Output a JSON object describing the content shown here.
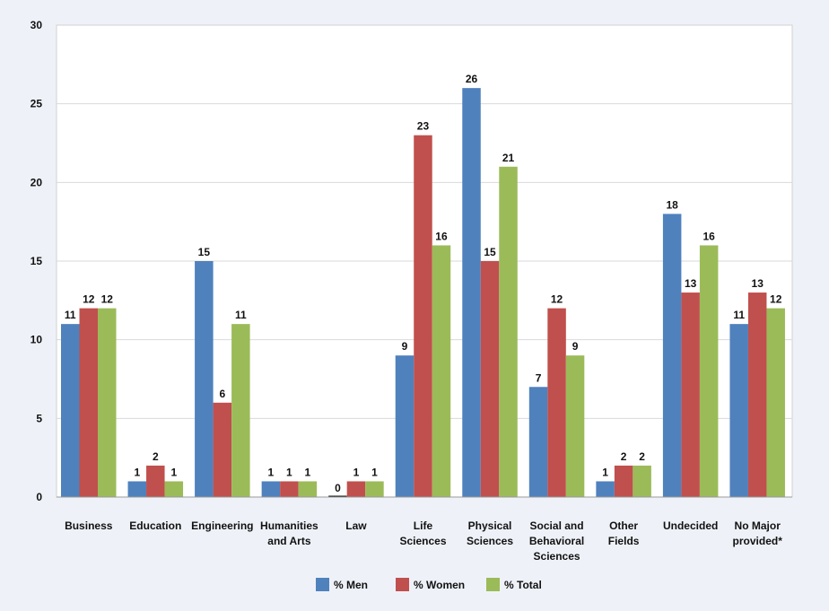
{
  "chart_data": {
    "type": "bar",
    "title": "",
    "xlabel": "",
    "ylabel": "",
    "ylim": [
      0,
      30
    ],
    "yticks": [
      0,
      5,
      10,
      15,
      20,
      25,
      30
    ],
    "grid": true,
    "legend_position": "bottom-center",
    "categories": [
      [
        "Business"
      ],
      [
        "Education"
      ],
      [
        "Engineering"
      ],
      [
        "Humanities",
        "and Arts"
      ],
      [
        "Law"
      ],
      [
        "Life",
        "Sciences"
      ],
      [
        "Physical",
        "Sciences"
      ],
      [
        "Social and",
        "Behavioral",
        "Sciences"
      ],
      [
        "Other",
        "Fields"
      ],
      [
        "Undecided"
      ],
      [
        "No Major",
        "provided*"
      ]
    ],
    "series": [
      {
        "name": "% Men",
        "color": "#4f81bd",
        "values": [
          11,
          1,
          15,
          1,
          0,
          9,
          26,
          7,
          1,
          18,
          11
        ]
      },
      {
        "name": "% Women",
        "color": "#c0504d",
        "values": [
          12,
          2,
          6,
          1,
          1,
          23,
          15,
          12,
          2,
          13,
          13
        ]
      },
      {
        "name": "% Total",
        "color": "#9bbb59",
        "values": [
          12,
          1,
          11,
          1,
          1,
          16,
          21,
          9,
          2,
          16,
          12
        ]
      }
    ]
  }
}
